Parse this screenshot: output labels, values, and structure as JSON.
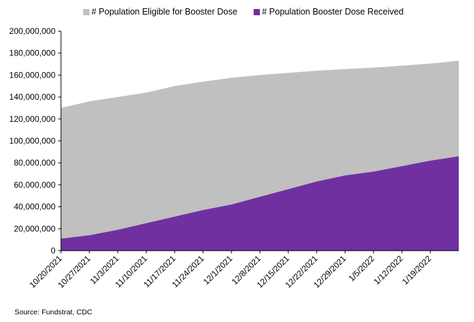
{
  "chart_data": {
    "type": "area",
    "xlabel": "",
    "ylabel": "",
    "ylim": [
      0,
      200000000
    ],
    "y_ticks": [
      0,
      20000000,
      40000000,
      60000000,
      80000000,
      100000000,
      120000000,
      140000000,
      160000000,
      180000000,
      200000000
    ],
    "y_tick_labels": [
      "0",
      "20,000,000",
      "40,000,000",
      "60,000,000",
      "80,000,000",
      "100,000,000",
      "120,000,000",
      "140,000,000",
      "160,000,000",
      "180,000,000",
      "200,000,000"
    ],
    "x_tick_labels": [
      "10/20/2021",
      "10/27/2021",
      "11/3/2021",
      "11/10/2021",
      "11/17/2021",
      "11/24/2021",
      "12/1/2021",
      "12/8/2021",
      "12/15/2021",
      "12/22/2021",
      "12/29/2021",
      "1/5/2022",
      "1/12/2022",
      "1/19/2022"
    ],
    "x": [
      "10/20/2021",
      "10/27/2021",
      "11/3/2021",
      "11/10/2021",
      "11/17/2021",
      "11/24/2021",
      "12/1/2021",
      "12/8/2021",
      "12/15/2021",
      "12/22/2021",
      "12/29/2021",
      "1/5/2022",
      "1/12/2022",
      "1/19/2022",
      "1/26/2022"
    ],
    "grid": false,
    "legend_position": "top",
    "series": [
      {
        "name": "# Population Eligible for Booster Dose",
        "color": "#c0c0c0",
        "values": [
          130000000,
          136000000,
          140000000,
          144000000,
          150000000,
          154000000,
          157500000,
          160000000,
          162000000,
          164000000,
          165500000,
          166800000,
          168500000,
          170500000,
          173000000
        ]
      },
      {
        "name": "# Population Booster Dose Received",
        "color": "#7030a0",
        "values": [
          11000000,
          14000000,
          19000000,
          25000000,
          31000000,
          37000000,
          42000000,
          49000000,
          56000000,
          63000000,
          68500000,
          72000000,
          77000000,
          82000000,
          86000000
        ]
      }
    ]
  },
  "source_note": "Source: Fundstrat, CDC"
}
